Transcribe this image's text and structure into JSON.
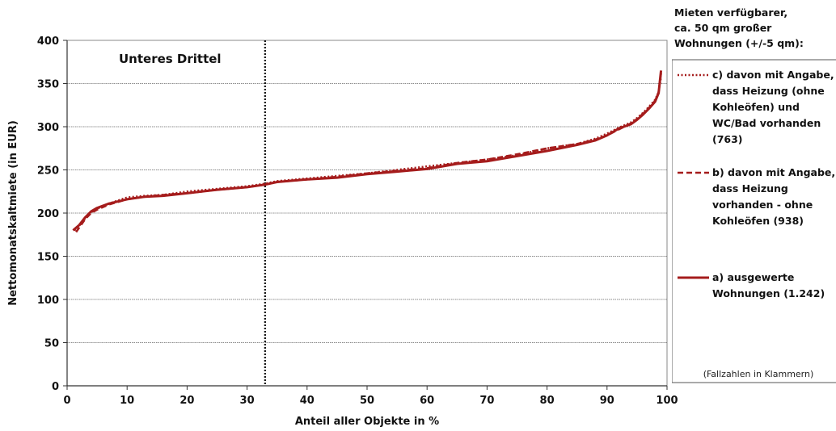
{
  "chart_data": {
    "type": "line",
    "xlabel": "Anteil aller Objekte in %",
    "ylabel": "Nettomonatskaltmiete (in EUR)",
    "xlim": [
      0,
      100
    ],
    "ylim": [
      0,
      400
    ],
    "xticks": [
      0,
      10,
      20,
      30,
      40,
      50,
      60,
      70,
      80,
      90,
      100
    ],
    "yticks": [
      0,
      50,
      100,
      150,
      200,
      250,
      300,
      350,
      400
    ],
    "grid": "horizontal",
    "legend_position": "right",
    "legend_title": "Mieten verfügbarer, ca. 50 qm großer Wohnungen (+/-5 qm):",
    "legend_note": "(Fallzahlen in Klammern)",
    "annotation": {
      "text": "Unteres Drittel",
      "marker_x": 33
    },
    "series": [
      {
        "name": "c) davon mit Angabe, dass Heizung (ohne Kohleöfen) und WC/Bad vorhanden (763)",
        "style": "dotted",
        "color": "#a51c1c",
        "x": [
          1.2,
          2,
          3,
          4,
          5,
          7,
          10,
          13,
          16,
          20,
          25,
          30,
          33,
          35,
          40,
          45,
          50,
          55,
          60,
          65,
          70,
          75,
          80,
          85,
          88,
          90,
          92,
          94,
          95,
          96,
          97,
          98,
          98.6,
          99
        ],
        "y": [
          180,
          185,
          194,
          201,
          205,
          211,
          218,
          220,
          221,
          225,
          228,
          231,
          234,
          237,
          240,
          243,
          246,
          250,
          254,
          258,
          262,
          267,
          275,
          280,
          286,
          292,
          299,
          305,
          310,
          316,
          323,
          331,
          340,
          358
        ]
      },
      {
        "name": "b) davon mit Angabe, dass Heizung vorhanden - ohne Kohleöfen (938)",
        "style": "dashed",
        "color": "#a51c1c",
        "x": [
          1.5,
          2,
          3,
          4,
          5,
          7,
          10,
          13,
          16,
          20,
          25,
          30,
          33,
          35,
          40,
          45,
          50,
          55,
          60,
          65,
          70,
          75,
          80,
          85,
          88,
          90,
          92,
          94,
          95,
          96,
          97,
          98,
          98.6,
          99
        ],
        "y": [
          178,
          183,
          193,
          200,
          204,
          210,
          216,
          219,
          221,
          223,
          227,
          230,
          233,
          236,
          239,
          242,
          246,
          249,
          252,
          258,
          262,
          268,
          275,
          280,
          285,
          290,
          297,
          304,
          309,
          315,
          322,
          330,
          340,
          362
        ]
      },
      {
        "name": "a) ausgewerte Wohnungen (1.242)",
        "style": "solid",
        "color": "#a51c1c",
        "x": [
          1,
          2,
          3,
          4,
          5,
          7,
          10,
          13,
          16,
          20,
          25,
          30,
          33,
          35,
          40,
          45,
          50,
          55,
          60,
          65,
          70,
          75,
          80,
          85,
          88,
          90,
          92,
          94,
          95,
          96,
          97,
          98,
          98.6,
          99
        ],
        "y": [
          180,
          186,
          195,
          202,
          206,
          211,
          216,
          219,
          220,
          223,
          227,
          230,
          233,
          236,
          239,
          241,
          245,
          248,
          251,
          257,
          260,
          266,
          272,
          279,
          284,
          290,
          298,
          303,
          308,
          314,
          321,
          329,
          339,
          365
        ]
      }
    ],
    "legend_entries": [
      {
        "lines": [
          "c) davon mit Angabe,",
          "dass Heizung (ohne",
          "Kohleöfen) und",
          "WC/Bad vorhanden",
          "(763)"
        ]
      },
      {
        "lines": [
          "b) davon mit Angabe,",
          "dass Heizung",
          "vorhanden - ohne",
          "Kohleöfen (938)"
        ]
      },
      {
        "lines": [
          "a)  ausgewerte",
          "Wohnungen (1.242)"
        ]
      }
    ],
    "legend_title_lines": [
      "Mieten verfügbarer,",
      "ca. 50 qm großer",
      "Wohnungen (+/-5 qm):"
    ]
  }
}
